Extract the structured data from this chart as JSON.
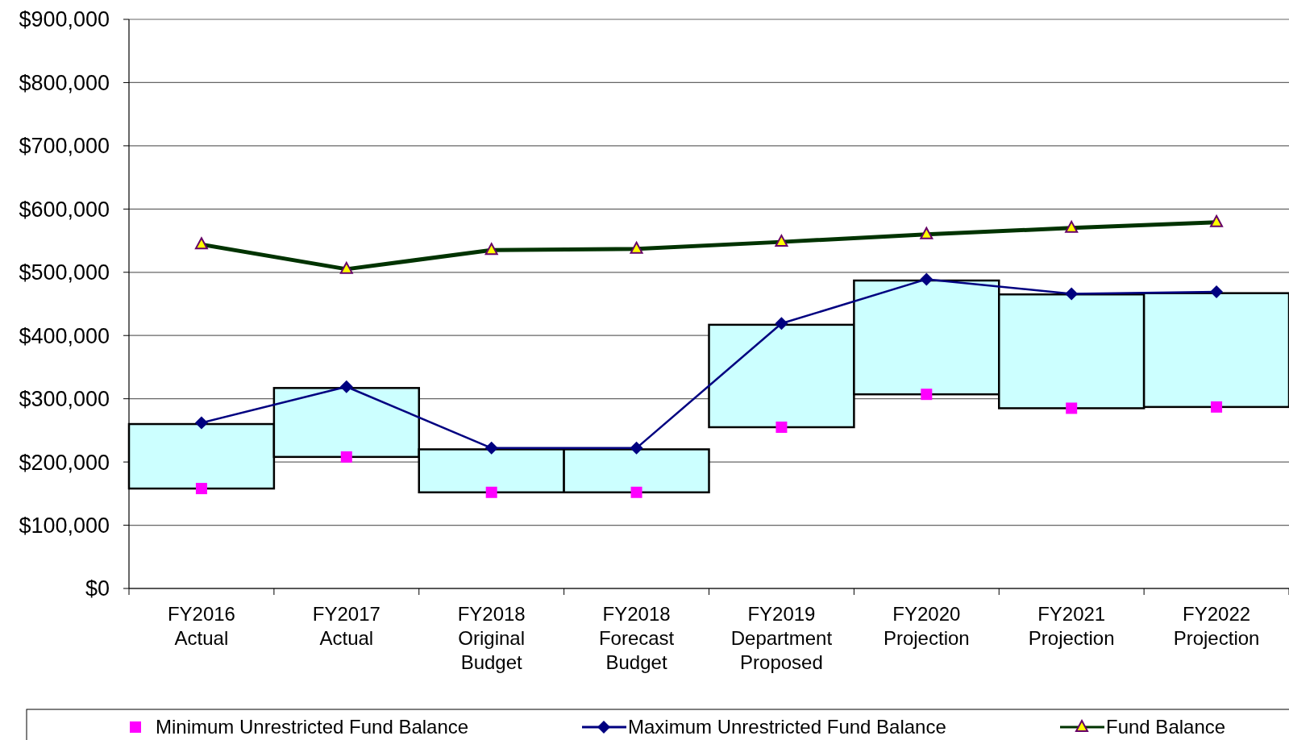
{
  "chart_data": {
    "type": "bar",
    "categories": [
      "FY2016 Actual",
      "FY2017 Actual",
      "FY2018 Original Budget",
      "FY2018 Forecast Budget",
      "FY2019 Department Proposed",
      "FY2020 Projection",
      "FY2021 Projection",
      "FY2022 Projection"
    ],
    "series": [
      {
        "color": "#ccffff",
        "base": [
          158000,
          208000,
          152000,
          152000,
          255000,
          307000,
          285000,
          287000
        ],
        "values": [
          102000,
          109000,
          68000,
          68000,
          162000,
          180000,
          180000,
          180000
        ]
      },
      {
        "type": "scatter",
        "name": "Minimum Unrestricted Fund Balance",
        "color": "#ff00ff",
        "marker": "square",
        "values": [
          158000,
          208000,
          152000,
          152000,
          255000,
          307000,
          285000,
          287000
        ]
      },
      {
        "type": "line",
        "name": "Maximum Unrestricted Fund Balance",
        "color": "#000080",
        "marker": "diamond",
        "values": [
          262000,
          319000,
          222000,
          222000,
          419000,
          489000,
          466000,
          469000
        ]
      },
      {
        "type": "line",
        "name": "Fund Balance",
        "color": "#003300",
        "marker": "triangle",
        "values": [
          544000,
          505000,
          535000,
          537000,
          548000,
          560000,
          570000,
          579000
        ]
      }
    ],
    "ylim": [
      0,
      900000
    ],
    "yticks": [
      {
        "value": 0,
        "label": "$0"
      },
      {
        "value": 100000,
        "label": "$100,000"
      },
      {
        "value": 200000,
        "label": "$200,000"
      },
      {
        "value": 300000,
        "label": "$300,000"
      },
      {
        "value": 400000,
        "label": "$400,000"
      },
      {
        "value": 500000,
        "label": "$500,000"
      },
      {
        "value": 600000,
        "label": "$600,000"
      },
      {
        "value": 700000,
        "label": "$700,000"
      },
      {
        "value": 800000,
        "label": "$800,000"
      },
      {
        "value": 900000,
        "label": "$900,000"
      }
    ],
    "grid": "y",
    "legend": "bottom"
  }
}
